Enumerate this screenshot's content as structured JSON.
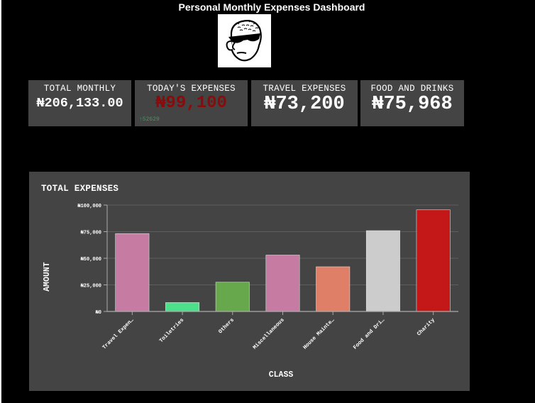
{
  "page": {
    "title": "Personal Monthly Expenses Dashboard"
  },
  "cards": [
    {
      "label": "TOTAL MONTHLY",
      "value": "₦206,133.00",
      "color": "#ffffff"
    },
    {
      "label": "TODAY'S EXPENSES",
      "value": "₦99,100",
      "color": "#8b0a0a",
      "delta": "↑52629",
      "delta_color": "#3f9a5e"
    },
    {
      "label": "TRAVEL EXPENSES",
      "value": "₦73,200",
      "color": "#ffffff"
    },
    {
      "label": "FOOD AND DRINKS",
      "value": "₦75,968",
      "color": "#ffffff"
    }
  ],
  "chart_data": {
    "type": "bar",
    "title": "TOTAL EXPENSES",
    "xlabel": "CLASS",
    "ylabel": "AMOUNT",
    "ylim": [
      0,
      100000
    ],
    "yticks": [
      0,
      25000,
      50000,
      75000,
      100000
    ],
    "ytick_labels": [
      "₦0",
      "₦25,000",
      "₦50,000",
      "₦75,000",
      "₦100,000"
    ],
    "categories": [
      "Travel Expen…",
      "Toiletries",
      "Others",
      "Miscellaneous",
      "House Mainte…",
      "Food and Dri…",
      "Charity"
    ],
    "values": [
      73200,
      8400,
      27500,
      53000,
      42000,
      75968,
      95500
    ],
    "colors": [
      "#c67ba2",
      "#4ce08a",
      "#67a84c",
      "#c67ba2",
      "#e07f68",
      "#cccccc",
      "#c41818"
    ]
  }
}
